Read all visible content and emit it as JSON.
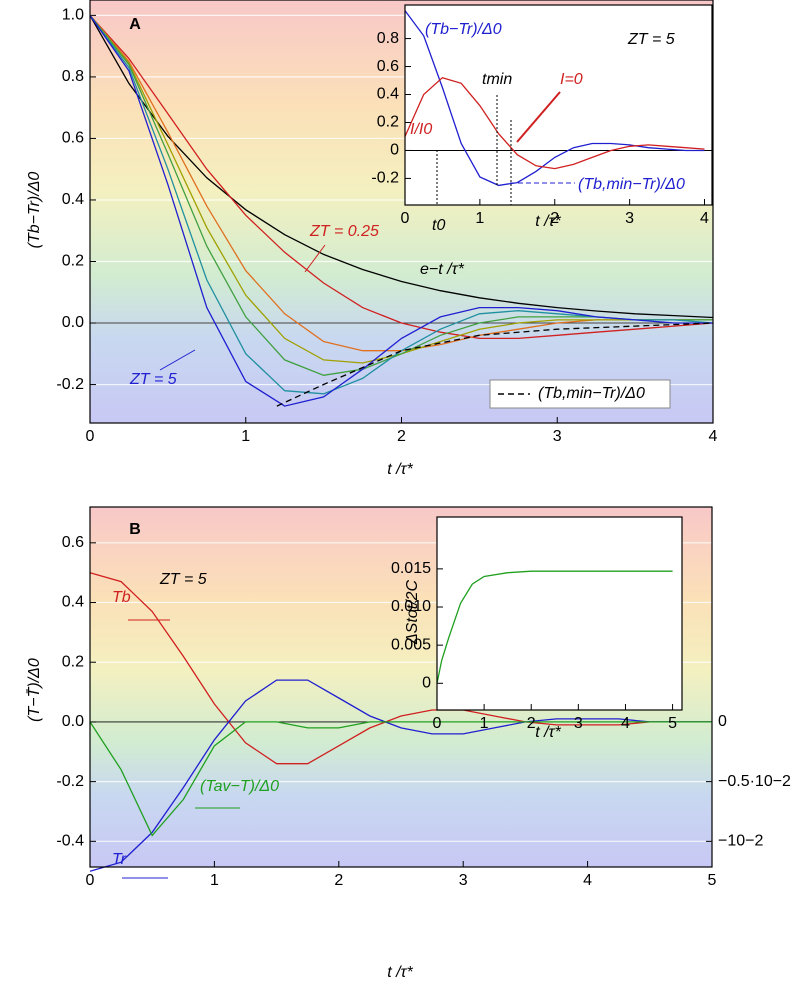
{
  "chart_data": [
    {
      "type": "line",
      "panel_label": "A",
      "xlabel": "t /τ*",
      "ylabel": "(Tb−Tr)/Δ0",
      "xlim": [
        0,
        4
      ],
      "ylim": [
        -0.325,
        1.05
      ],
      "xticks": [
        0,
        1,
        2,
        3,
        4
      ],
      "yticks": [
        -0.2,
        {
          "value": 0,
          "label": "0.0"
        },
        0.2,
        0.4,
        0.6,
        0.8,
        {
          "value": 1,
          "label": "1.0"
        }
      ],
      "grid": true,
      "legend": "lower right",
      "x": [
        0,
        0.25,
        0.5,
        0.75,
        1,
        1.25,
        1.5,
        1.75,
        2,
        2.25,
        2.5,
        2.75,
        3,
        3.25,
        3.5,
        3.75,
        4
      ],
      "series": [
        {
          "color": "#000000",
          "values": [
            1,
            0.779,
            0.607,
            0.472,
            0.368,
            0.287,
            0.223,
            0.174,
            0.135,
            0.105,
            0.082,
            0.064,
            0.05,
            0.039,
            0.03,
            0.024,
            0.018
          ]
        },
        {
          "color": "#d02020",
          "values": [
            1,
            0.86,
            0.68,
            0.5,
            0.35,
            0.23,
            0.13,
            0.05,
            0,
            -0.03,
            -0.05,
            -0.05,
            -0.04,
            -0.03,
            -0.02,
            -0.01,
            0
          ]
        },
        {
          "color": "#e07020",
          "values": [
            1,
            0.85,
            0.62,
            0.38,
            0.17,
            0.03,
            -0.06,
            -0.09,
            -0.09,
            -0.07,
            -0.04,
            -0.02,
            0,
            0.01,
            0.01,
            0.01,
            0.01
          ]
        },
        {
          "color": "#a0a000",
          "values": [
            1,
            0.845,
            0.58,
            0.31,
            0.09,
            -0.05,
            -0.12,
            -0.13,
            -0.1,
            -0.06,
            -0.02,
            0,
            0.01,
            0.01,
            0.01,
            0.01,
            0.01
          ]
        },
        {
          "color": "#40a040",
          "values": [
            1,
            0.84,
            0.55,
            0.25,
            0.02,
            -0.12,
            -0.17,
            -0.15,
            -0.1,
            -0.04,
            0,
            0.02,
            0.02,
            0.02,
            0.01,
            0.01,
            0.01
          ]
        },
        {
          "color": "#2090a0",
          "values": [
            1,
            0.83,
            0.5,
            0.14,
            -0.1,
            -0.22,
            -0.23,
            -0.18,
            -0.09,
            -0.02,
            0.03,
            0.04,
            0.03,
            0.02,
            0.01,
            0.01,
            0
          ]
        },
        {
          "color": "#2020d0",
          "values": [
            1,
            0.82,
            0.45,
            0.05,
            -0.19,
            -0.27,
            -0.24,
            -0.15,
            -0.05,
            0.02,
            0.05,
            0.05,
            0.04,
            0.02,
            0.01,
            0,
            0
          ]
        },
        {
          "name": "(Tb,min−Tr)/Δ0",
          "color": "#000000",
          "dash": true,
          "x": [
            1.2,
            1.5,
            2,
            2.5,
            3,
            3.5,
            4
          ],
          "values": [
            -0.27,
            -0.2,
            -0.09,
            -0.04,
            -0.02,
            -0.01,
            0
          ]
        }
      ],
      "annotations": [
        {
          "text": "ZT = 0.25",
          "color": "#d02020"
        },
        {
          "text": "ZT = 5",
          "color": "#2020d0"
        },
        {
          "text": "e−t /τ*",
          "color": "#000000"
        }
      ]
    },
    {
      "type": "line",
      "xlabel": "t /τ*",
      "xlim": [
        0,
        4.1
      ],
      "ylim": [
        -0.39,
        1.04
      ],
      "xticks": [
        0,
        1,
        2,
        3,
        4
      ],
      "yticks": [
        -0.2,
        0,
        0.2,
        0.4,
        0.6,
        0.8
      ],
      "zero_line": true,
      "x": [
        0,
        0.25,
        0.5,
        0.75,
        1,
        1.25,
        1.5,
        1.75,
        2,
        2.25,
        2.5,
        2.75,
        3,
        3.25,
        3.5,
        3.75,
        4
      ],
      "series": [
        {
          "color": "#2020d0",
          "values": [
            1,
            0.82,
            0.45,
            0.05,
            -0.19,
            -0.25,
            -0.23,
            -0.15,
            -0.05,
            0.02,
            0.05,
            0.05,
            0.04,
            0.02,
            0.01,
            0,
            0
          ]
        },
        {
          "color": "#d02020",
          "values": [
            0.1,
            0.4,
            0.52,
            0.48,
            0.32,
            0.12,
            -0.03,
            -0.11,
            -0.13,
            -0.1,
            -0.05,
            0,
            0.03,
            0.04,
            0.03,
            0.02,
            0.01
          ]
        }
      ],
      "annotations": [
        {
          "text": "(Tb−Tr)/Δ0",
          "color": "#2020d0"
        },
        {
          "text": "ZT = 5",
          "color": "#000000"
        },
        {
          "text": "tmin",
          "color": "#000000"
        },
        {
          "text": "I=0",
          "color": "#d02020"
        },
        {
          "text": "I/I0",
          "color": "#d02020"
        },
        {
          "text": "t0",
          "color": "#000000"
        },
        {
          "text": "(Tb,min−Tr)/Δ0",
          "color": "#2020d0"
        }
      ]
    },
    {
      "type": "line",
      "panel_label": "B",
      "xlabel": "t /τ*",
      "ylabel": "(T−T̄)/Δ0",
      "xlim": [
        0,
        5
      ],
      "ylim": [
        -0.486,
        0.72
      ],
      "xticks": [
        0,
        1,
        2,
        3,
        4,
        5
      ],
      "yticks": [
        -0.4,
        -0.2,
        {
          "value": 0,
          "label": "0.0"
        },
        0.2,
        0.4,
        0.6
      ],
      "y2lim": [
        -0.01215,
        0.018
      ],
      "y2ticks": [
        0,
        {
          "value": -0.005,
          "label": "−0.5·10−2"
        },
        {
          "value": -0.01,
          "label": "−10−2"
        }
      ],
      "grid": true,
      "x": [
        0,
        0.25,
        0.5,
        0.75,
        1,
        1.25,
        1.5,
        1.75,
        2,
        2.25,
        2.5,
        2.75,
        3,
        3.25,
        3.5,
        3.75,
        4,
        4.25,
        4.5,
        4.75,
        5
      ],
      "series": [
        {
          "color": "#d02020",
          "values": [
            0.5,
            0.47,
            0.37,
            0.22,
            0.06,
            -0.07,
            -0.14,
            -0.14,
            -0.08,
            -0.02,
            0.02,
            0.04,
            0.04,
            0.02,
            0,
            -0.01,
            -0.01,
            -0.01,
            0,
            0,
            0
          ]
        },
        {
          "color": "#2020d0",
          "values": [
            -0.5,
            -0.47,
            -0.37,
            -0.22,
            -0.06,
            0.07,
            0.14,
            0.14,
            0.08,
            0.02,
            -0.02,
            -0.04,
            -0.04,
            -0.02,
            0,
            0.01,
            0.01,
            0.01,
            0,
            0,
            0
          ]
        },
        {
          "color": "#20a020",
          "axis": "y2",
          "values": [
            0,
            -0.004,
            -0.0095,
            -0.0065,
            -0.002,
            0,
            0,
            -0.0005,
            -0.0005,
            0,
            0,
            0,
            0,
            0,
            0,
            0,
            0,
            0,
            0,
            0,
            0
          ]
        }
      ],
      "annotations": [
        {
          "text": "ZT = 5",
          "color": "#000000"
        },
        {
          "text": "Tb",
          "color": "#d02020"
        },
        {
          "text": "Tr",
          "color": "#2020d0"
        },
        {
          "text": "(Tav−T)/Δ0",
          "color": "#20a020"
        }
      ]
    },
    {
      "type": "line",
      "xlabel": "t /τ*",
      "ylabel": "ΔStot/2C",
      "xlim": [
        0,
        5.2
      ],
      "ylim": [
        -0.0035,
        0.0218
      ],
      "xticks": [
        0,
        1,
        2,
        3,
        4,
        5
      ],
      "yticks": [
        0,
        0.005,
        {
          "value": 0.01,
          "label": "0.010"
        },
        0.015
      ],
      "x": [
        0,
        0.1,
        0.25,
        0.5,
        0.75,
        1,
        1.5,
        2,
        3,
        4,
        5
      ],
      "series": [
        {
          "color": "#20a020",
          "values": [
            0,
            0.003,
            0.006,
            0.0105,
            0.013,
            0.014,
            0.0145,
            0.0147,
            0.0147,
            0.0147,
            0.0147
          ]
        }
      ]
    }
  ]
}
